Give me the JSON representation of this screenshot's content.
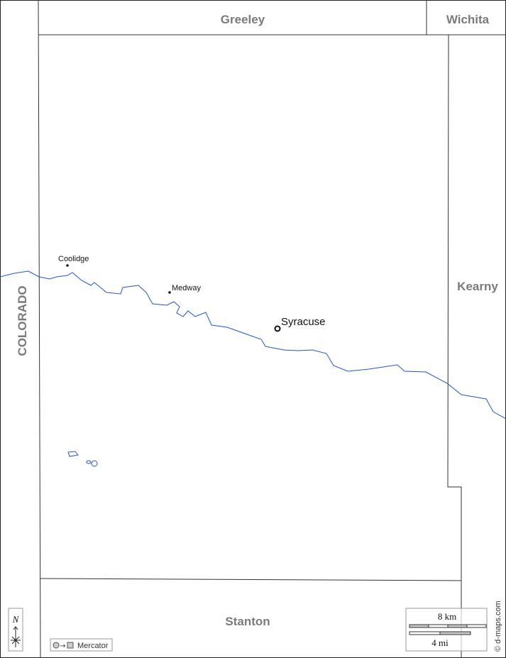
{
  "map": {
    "counties": {
      "greeley": "Greeley",
      "wichita": "Wichita",
      "kearny": "Kearny",
      "stanton": "Stanton",
      "colorado": "COLORADO"
    },
    "places": {
      "coolidge": "Coolidge",
      "medway": "Medway",
      "syracuse": "Syracuse"
    },
    "north_label": "N",
    "projection_label": "Mercator",
    "scale": {
      "km": "8 km",
      "mi": "4 mi"
    },
    "credit": "© d-maps.com",
    "colors": {
      "river": "#2255cc",
      "labels": "#7a7a7a",
      "boundary": "#222222",
      "scale_fill": "#c8c8c8"
    }
  }
}
